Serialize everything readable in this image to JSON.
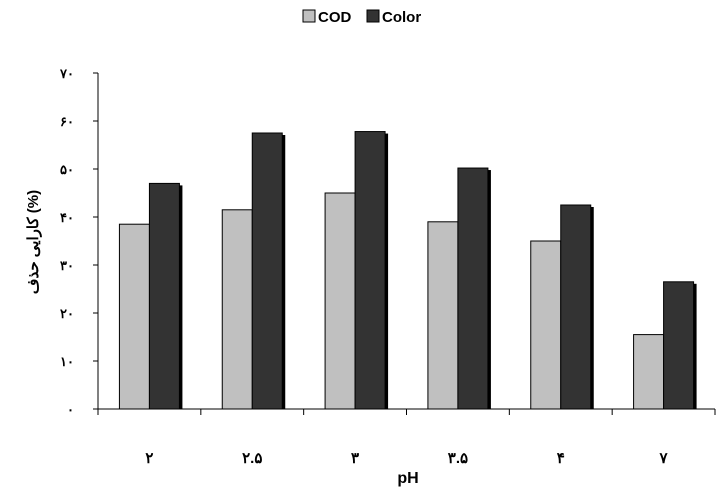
{
  "chart_data": {
    "type": "bar",
    "title": "",
    "xlabel": "pH",
    "ylabel": "کارایی حذف (%)",
    "categories": [
      "۲",
      "۲.۵",
      "۳",
      "۳.۵",
      "۴",
      "۷"
    ],
    "series": [
      {
        "name": "COD",
        "values": [
          38.5,
          41.5,
          45,
          39,
          35,
          15.5
        ],
        "color": "#c0c0c0"
      },
      {
        "name": "Color",
        "values": [
          47,
          57.5,
          57.8,
          50.2,
          42.5,
          26.5
        ],
        "color": "#333333"
      }
    ],
    "ylim": [
      0,
      70
    ],
    "yticks": [
      0,
      10,
      20,
      30,
      40,
      50,
      60,
      70
    ],
    "ytick_labels": [
      "۰",
      "۱۰",
      "۲۰",
      "۳۰",
      "۴۰",
      "۵۰",
      "۶۰",
      "۷۰"
    ],
    "grid": false,
    "legend_position": "top-center"
  }
}
